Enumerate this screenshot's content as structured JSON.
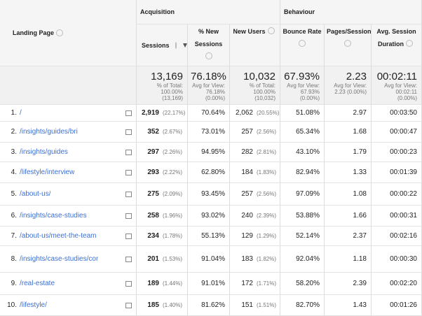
{
  "groups": {
    "acquisition": "Acquisition",
    "behaviour": "Behaviour"
  },
  "columns": [
    "Landing Page",
    "Sessions",
    "% New Sessions",
    "New Users",
    "Bounce Rate",
    "Pages/Session",
    "Avg. Session Duration"
  ],
  "totals": [
    {
      "value": "13,169",
      "lines": [
        "% of Total:",
        "100.00%",
        "(13,169)"
      ]
    },
    {
      "value": "76.18%",
      "lines": [
        "Avg for View:",
        "76.18%",
        "(0.00%)"
      ]
    },
    {
      "value": "10,032",
      "lines": [
        "% of Total:",
        "100.00%",
        "(10,032)"
      ]
    },
    {
      "value": "67.93%",
      "lines": [
        "Avg for View:",
        "67.93%",
        "(0.00%)"
      ]
    },
    {
      "value": "2.23",
      "lines": [
        "Avg for View:",
        "2.23 (0.00%)"
      ]
    },
    {
      "value": "00:02:11",
      "lines": [
        "Avg for View:",
        "00:02:11",
        "(0.00%)"
      ]
    }
  ],
  "rows": [
    [
      "1.",
      "/",
      "2,919",
      "(22.17%)",
      "70.64%",
      "2,062",
      "(20.55%)",
      "51.08%",
      "2.97",
      "00:03:50"
    ],
    [
      "2.",
      "/insights/guides/bri",
      "352",
      "(2.67%)",
      "73.01%",
      "257",
      "(2.56%)",
      "65.34%",
      "1.68",
      "00:00:47"
    ],
    [
      "3.",
      "/insights/guides",
      "297",
      "(2.26%)",
      "94.95%",
      "282",
      "(2.81%)",
      "43.10%",
      "1.79",
      "00:00:23"
    ],
    [
      "4.",
      "/lifestyle/interview",
      "293",
      "(2.22%)",
      "62.80%",
      "184",
      "(1.83%)",
      "82.94%",
      "1.33",
      "00:01:39"
    ],
    [
      "5.",
      "/about-us/",
      "275",
      "(2.09%)",
      "93.45%",
      "257",
      "(2.56%)",
      "97.09%",
      "1.08",
      "00:00:22"
    ],
    [
      "6.",
      "/insights/case-studies",
      "258",
      "(1.96%)",
      "93.02%",
      "240",
      "(2.39%)",
      "53.88%",
      "1.66",
      "00:00:31"
    ],
    [
      "7.",
      "/about-us/meet-the-team",
      "234",
      "(1.78%)",
      "55.13%",
      "129",
      "(1.29%)",
      "52.14%",
      "2.37",
      "00:02:16"
    ],
    [
      "8.",
      "/insights/case-studies/cor",
      "201",
      "(1.53%)",
      "91.04%",
      "183",
      "(1.82%)",
      "92.04%",
      "1.18",
      "00:00:30"
    ],
    [
      "9.",
      "/real-estate",
      "189",
      "(1.44%)",
      "91.01%",
      "172",
      "(1.71%)",
      "58.20%",
      "2.39",
      "00:02:20"
    ],
    [
      "10.",
      "/lifestyle/",
      "185",
      "(1.40%)",
      "81.62%",
      "151",
      "(1.51%)",
      "82.70%",
      "1.43",
      "00:01:26"
    ]
  ]
}
